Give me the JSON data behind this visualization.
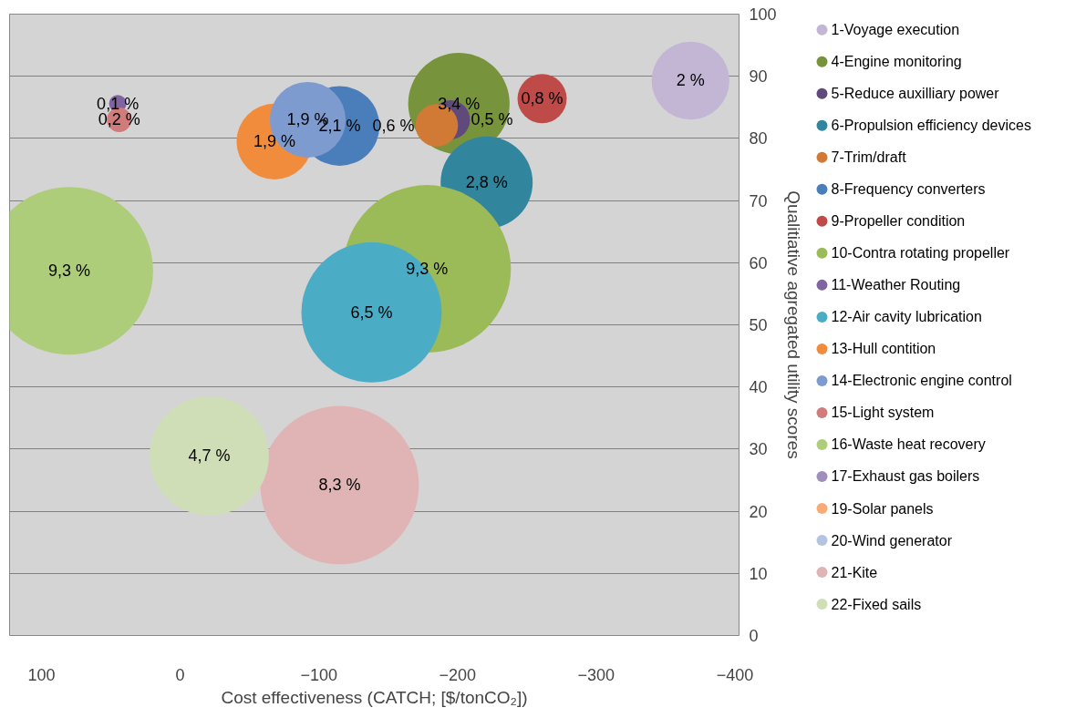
{
  "chart_data": {
    "type": "bubble",
    "xlabel": "Cost effectiveness (CATCH; [$/tonCO₂])",
    "ylabel": "Qualitiative agregated utility scores",
    "xlim": [
      123,
      -403
    ],
    "ylim": [
      0,
      100
    ],
    "xticks": [
      100,
      0,
      -100,
      -200,
      -300,
      -400
    ],
    "yticks": [
      0,
      10,
      20,
      30,
      40,
      50,
      60,
      70,
      80,
      90,
      100
    ],
    "grid": "y",
    "legend": "right",
    "series": [
      {
        "name": "1-Voyage execution",
        "color": "#c3b6d5",
        "x": [
          -368
        ],
        "values": [
          89.3
        ],
        "sizes": [
          2
        ],
        "value_labels": [
          "2 %"
        ]
      },
      {
        "name": "4-Engine monitoring",
        "color": "#77933c",
        "x": [
          -201
        ],
        "values": [
          85.6
        ],
        "sizes": [
          3.4
        ],
        "value_labels": [
          "3,4 %"
        ]
      },
      {
        "name": "5-Reduce auxilliary power",
        "color": "#604a7b",
        "x": [
          -195
        ],
        "values": [
          83
        ],
        "sizes": [
          0.5
        ],
        "value_labels": [
          "0,5 %"
        ]
      },
      {
        "name": "6-Propulsion efficiency devices",
        "color": "#31859c",
        "x": [
          -221
        ],
        "values": [
          72.9
        ],
        "sizes": [
          2.8
        ],
        "value_labels": [
          "2,8 %"
        ]
      },
      {
        "name": "7-Trim/draft",
        "color": "#d07a35",
        "x": [
          -185
        ],
        "values": [
          82.1
        ],
        "sizes": [
          0.6
        ],
        "value_labels": [
          "0,6 %"
        ]
      },
      {
        "name": "8-Frequency converters",
        "color": "#4a7ebb",
        "x": [
          -115
        ],
        "values": [
          82
        ],
        "sizes": [
          2.1
        ],
        "value_labels": [
          "2,1 %"
        ]
      },
      {
        "name": "9-Propeller condition",
        "color": "#be4b48",
        "x": [
          -261
        ],
        "values": [
          86.4
        ],
        "sizes": [
          0.8
        ],
        "value_labels": [
          "0,8 %"
        ]
      },
      {
        "name": "10-Contra rotating propeller",
        "color": "#9bbb59",
        "x": [
          -178
        ],
        "values": [
          59
        ],
        "sizes": [
          9.3
        ],
        "value_labels": [
          "9,3 %"
        ]
      },
      {
        "name": "11-Weather Routing",
        "color": "#8064a2",
        "x": [
          45
        ],
        "values": [
          85.6
        ],
        "sizes": [
          0.1
        ],
        "value_labels": [
          "0,1 %"
        ]
      },
      {
        "name": "12-Air cavity lubrication",
        "color": "#4bacc6",
        "x": [
          -138
        ],
        "values": [
          52
        ],
        "sizes": [
          6.5
        ],
        "value_labels": [
          "6,5 %"
        ]
      },
      {
        "name": "13-Hull contition",
        "color": "#f08c3c",
        "x": [
          -68
        ],
        "values": [
          79.5
        ],
        "sizes": [
          1.9
        ],
        "value_labels": [
          "1,9 %"
        ]
      },
      {
        "name": "14-Electronic engine control",
        "color": "#7e9bcf",
        "x": [
          -92
        ],
        "values": [
          83
        ],
        "sizes": [
          1.9
        ],
        "value_labels": [
          "1,9 %"
        ]
      },
      {
        "name": "15-Light system",
        "color": "#d07c7b",
        "x": [
          44
        ],
        "values": [
          83
        ],
        "sizes": [
          0.2
        ],
        "value_labels": [
          "0,2 %"
        ]
      },
      {
        "name": "16-Waste heat recovery",
        "color": "#aecd7a",
        "x": [
          80
        ],
        "values": [
          58.7
        ],
        "sizes": [
          9.3
        ],
        "value_labels": [
          "9,3 %"
        ]
      },
      {
        "name": "17-Exhaust gas boilers",
        "color": "#a08fbd",
        "x": [
          null
        ],
        "values": [
          null
        ],
        "sizes": [
          null
        ],
        "value_labels": [
          null
        ]
      },
      {
        "name": "19-Solar panels",
        "color": "#f9ab75",
        "x": [
          null
        ],
        "values": [
          null
        ],
        "sizes": [
          null
        ],
        "value_labels": [
          null
        ]
      },
      {
        "name": "20-Wind generator",
        "color": "#b4c4e0",
        "x": [
          null
        ],
        "values": [
          null
        ],
        "sizes": [
          null
        ],
        "value_labels": [
          null
        ]
      },
      {
        "name": "21-Kite",
        "color": "#e0b4b4",
        "x": [
          -115
        ],
        "values": [
          24.2
        ],
        "sizes": [
          8.3
        ],
        "value_labels": [
          "8,3 %"
        ]
      },
      {
        "name": "22-Fixed sails",
        "color": "#d0deb8",
        "x": [
          -21
        ],
        "values": [
          28.9
        ],
        "sizes": [
          4.7
        ],
        "value_labels": [
          "4,7 %"
        ]
      }
    ]
  }
}
